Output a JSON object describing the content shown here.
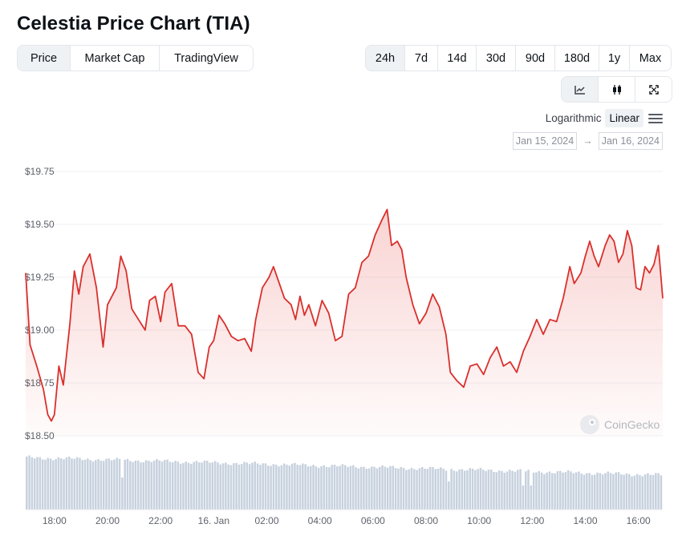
{
  "title": "Celestia Price Chart (TIA)",
  "view_tabs": [
    {
      "label": "Price",
      "active": true
    },
    {
      "label": "Market Cap",
      "active": false
    },
    {
      "label": "TradingView",
      "active": false
    }
  ],
  "range_tabs": [
    {
      "label": "24h",
      "active": true
    },
    {
      "label": "7d",
      "active": false
    },
    {
      "label": "14d",
      "active": false
    },
    {
      "label": "30d",
      "active": false
    },
    {
      "label": "90d",
      "active": false
    },
    {
      "label": "180d",
      "active": false
    },
    {
      "label": "1y",
      "active": false
    },
    {
      "label": "Max",
      "active": false
    }
  ],
  "tools": [
    {
      "name": "line-chart-icon",
      "active": true
    },
    {
      "name": "candlestick-icon",
      "active": false
    },
    {
      "name": "fullscreen-icon",
      "active": false
    }
  ],
  "scale": {
    "logarithmic": "Logarithmic",
    "linear": "Linear",
    "active": "linear"
  },
  "date_range": {
    "from": "Jan 15, 2024",
    "arrow": "→",
    "to": "Jan 16, 2024"
  },
  "watermark": "CoinGecko",
  "colors": {
    "line": "#d9302c",
    "volume": "#c7d1de",
    "grid": "#f0f2f4"
  },
  "chart_data": {
    "type": "line",
    "ylim": [
      18.5,
      19.75
    ],
    "y_ticks": [
      "$19.75",
      "$19.50",
      "$19.25",
      "$19.00",
      "$18.75",
      "$18.50"
    ],
    "y_tick_values": [
      19.75,
      19.5,
      19.25,
      19.0,
      18.75,
      18.5
    ],
    "x_range": [
      "2024-01-15T16:55",
      "2024-01-16T16:55"
    ],
    "x_ticks": [
      {
        "label": "18:00",
        "time": "2024-01-15T18:00"
      },
      {
        "label": "20:00",
        "time": "2024-01-15T20:00"
      },
      {
        "label": "22:00",
        "time": "2024-01-15T22:00"
      },
      {
        "label": "16. Jan",
        "time": "2024-01-16T00:00"
      },
      {
        "label": "02:00",
        "time": "2024-01-16T02:00"
      },
      {
        "label": "04:00",
        "time": "2024-01-16T04:00"
      },
      {
        "label": "06:00",
        "time": "2024-01-16T06:00"
      },
      {
        "label": "08:00",
        "time": "2024-01-16T08:00"
      },
      {
        "label": "10:00",
        "time": "2024-01-16T10:00"
      },
      {
        "label": "12:00",
        "time": "2024-01-16T12:00"
      },
      {
        "label": "14:00",
        "time": "2024-01-16T14:00"
      },
      {
        "label": "16:00",
        "time": "2024-01-16T16:00"
      }
    ],
    "series": [
      {
        "points": [
          [
            "2024-01-15T16:55",
            19.27
          ],
          [
            "2024-01-15T17:05",
            18.93
          ],
          [
            "2024-01-15T17:20",
            18.83
          ],
          [
            "2024-01-15T17:35",
            18.72
          ],
          [
            "2024-01-15T17:45",
            18.6
          ],
          [
            "2024-01-15T17:53",
            18.57
          ],
          [
            "2024-01-15T18:00",
            18.6
          ],
          [
            "2024-01-15T18:10",
            18.83
          ],
          [
            "2024-01-15T18:20",
            18.74
          ],
          [
            "2024-01-15T18:35",
            19.03
          ],
          [
            "2024-01-15T18:45",
            19.28
          ],
          [
            "2024-01-15T18:55",
            19.17
          ],
          [
            "2024-01-15T19:05",
            19.3
          ],
          [
            "2024-01-15T19:20",
            19.36
          ],
          [
            "2024-01-15T19:35",
            19.2
          ],
          [
            "2024-01-15T19:50",
            18.92
          ],
          [
            "2024-01-15T20:00",
            19.12
          ],
          [
            "2024-01-15T20:10",
            19.16
          ],
          [
            "2024-01-15T20:20",
            19.2
          ],
          [
            "2024-01-15T20:30",
            19.35
          ],
          [
            "2024-01-15T20:42",
            19.28
          ],
          [
            "2024-01-15T20:55",
            19.1
          ],
          [
            "2024-01-15T21:10",
            19.05
          ],
          [
            "2024-01-15T21:25",
            19.0
          ],
          [
            "2024-01-15T21:35",
            19.14
          ],
          [
            "2024-01-15T21:48",
            19.16
          ],
          [
            "2024-01-15T22:00",
            19.04
          ],
          [
            "2024-01-15T22:10",
            19.18
          ],
          [
            "2024-01-15T22:25",
            19.22
          ],
          [
            "2024-01-15T22:40",
            19.02
          ],
          [
            "2024-01-15T22:55",
            19.02
          ],
          [
            "2024-01-15T23:10",
            18.98
          ],
          [
            "2024-01-15T23:25",
            18.8
          ],
          [
            "2024-01-15T23:38",
            18.77
          ],
          [
            "2024-01-15T23:50",
            18.92
          ],
          [
            "2024-01-16T00:00",
            18.95
          ],
          [
            "2024-01-16T00:12",
            19.07
          ],
          [
            "2024-01-16T00:25",
            19.03
          ],
          [
            "2024-01-16T00:40",
            18.97
          ],
          [
            "2024-01-16T00:55",
            18.95
          ],
          [
            "2024-01-16T01:10",
            18.96
          ],
          [
            "2024-01-16T01:25",
            18.9
          ],
          [
            "2024-01-16T01:35",
            19.05
          ],
          [
            "2024-01-16T01:50",
            19.2
          ],
          [
            "2024-01-16T02:05",
            19.25
          ],
          [
            "2024-01-16T02:15",
            19.3
          ],
          [
            "2024-01-16T02:25",
            19.24
          ],
          [
            "2024-01-16T02:40",
            19.15
          ],
          [
            "2024-01-16T02:55",
            19.12
          ],
          [
            "2024-01-16T03:05",
            19.05
          ],
          [
            "2024-01-16T03:15",
            19.16
          ],
          [
            "2024-01-16T03:25",
            19.07
          ],
          [
            "2024-01-16T03:35",
            19.12
          ],
          [
            "2024-01-16T03:50",
            19.02
          ],
          [
            "2024-01-16T04:05",
            19.14
          ],
          [
            "2024-01-16T04:20",
            19.08
          ],
          [
            "2024-01-16T04:35",
            18.95
          ],
          [
            "2024-01-16T04:50",
            18.97
          ],
          [
            "2024-01-16T05:05",
            19.17
          ],
          [
            "2024-01-16T05:20",
            19.2
          ],
          [
            "2024-01-16T05:35",
            19.32
          ],
          [
            "2024-01-16T05:50",
            19.35
          ],
          [
            "2024-01-16T06:05",
            19.45
          ],
          [
            "2024-01-16T06:20",
            19.52
          ],
          [
            "2024-01-16T06:32",
            19.57
          ],
          [
            "2024-01-16T06:42",
            19.4
          ],
          [
            "2024-01-16T06:55",
            19.42
          ],
          [
            "2024-01-16T07:05",
            19.38
          ],
          [
            "2024-01-16T07:15",
            19.25
          ],
          [
            "2024-01-16T07:30",
            19.12
          ],
          [
            "2024-01-16T07:45",
            19.03
          ],
          [
            "2024-01-16T08:00",
            19.08
          ],
          [
            "2024-01-16T08:15",
            19.17
          ],
          [
            "2024-01-16T08:30",
            19.11
          ],
          [
            "2024-01-16T08:45",
            18.98
          ],
          [
            "2024-01-16T08:55",
            18.8
          ],
          [
            "2024-01-16T09:10",
            18.76
          ],
          [
            "2024-01-16T09:25",
            18.73
          ],
          [
            "2024-01-16T09:40",
            18.83
          ],
          [
            "2024-01-16T09:55",
            18.84
          ],
          [
            "2024-01-16T10:10",
            18.79
          ],
          [
            "2024-01-16T10:25",
            18.87
          ],
          [
            "2024-01-16T10:40",
            18.92
          ],
          [
            "2024-01-16T10:55",
            18.83
          ],
          [
            "2024-01-16T11:10",
            18.85
          ],
          [
            "2024-01-16T11:25",
            18.8
          ],
          [
            "2024-01-16T11:40",
            18.9
          ],
          [
            "2024-01-16T11:55",
            18.97
          ],
          [
            "2024-01-16T12:10",
            19.05
          ],
          [
            "2024-01-16T12:25",
            18.98
          ],
          [
            "2024-01-16T12:40",
            19.05
          ],
          [
            "2024-01-16T12:55",
            19.04
          ],
          [
            "2024-01-16T13:10",
            19.15
          ],
          [
            "2024-01-16T13:25",
            19.3
          ],
          [
            "2024-01-16T13:35",
            19.22
          ],
          [
            "2024-01-16T13:50",
            19.27
          ],
          [
            "2024-01-16T14:00",
            19.35
          ],
          [
            "2024-01-16T14:10",
            19.42
          ],
          [
            "2024-01-16T14:20",
            19.35
          ],
          [
            "2024-01-16T14:30",
            19.3
          ],
          [
            "2024-01-16T14:45",
            19.4
          ],
          [
            "2024-01-16T14:55",
            19.45
          ],
          [
            "2024-01-16T15:05",
            19.42
          ],
          [
            "2024-01-16T15:15",
            19.32
          ],
          [
            "2024-01-16T15:25",
            19.36
          ],
          [
            "2024-01-16T15:35",
            19.47
          ],
          [
            "2024-01-16T15:45",
            19.4
          ],
          [
            "2024-01-16T15:55",
            19.2
          ],
          [
            "2024-01-16T16:05",
            19.19
          ],
          [
            "2024-01-16T16:15",
            19.3
          ],
          [
            "2024-01-16T16:25",
            19.27
          ],
          [
            "2024-01-16T16:35",
            19.31
          ],
          [
            "2024-01-16T16:45",
            19.4
          ],
          [
            "2024-01-16T16:55",
            19.15
          ]
        ]
      }
    ],
    "volume_bars": 240,
    "grid": true,
    "legend": "none"
  }
}
